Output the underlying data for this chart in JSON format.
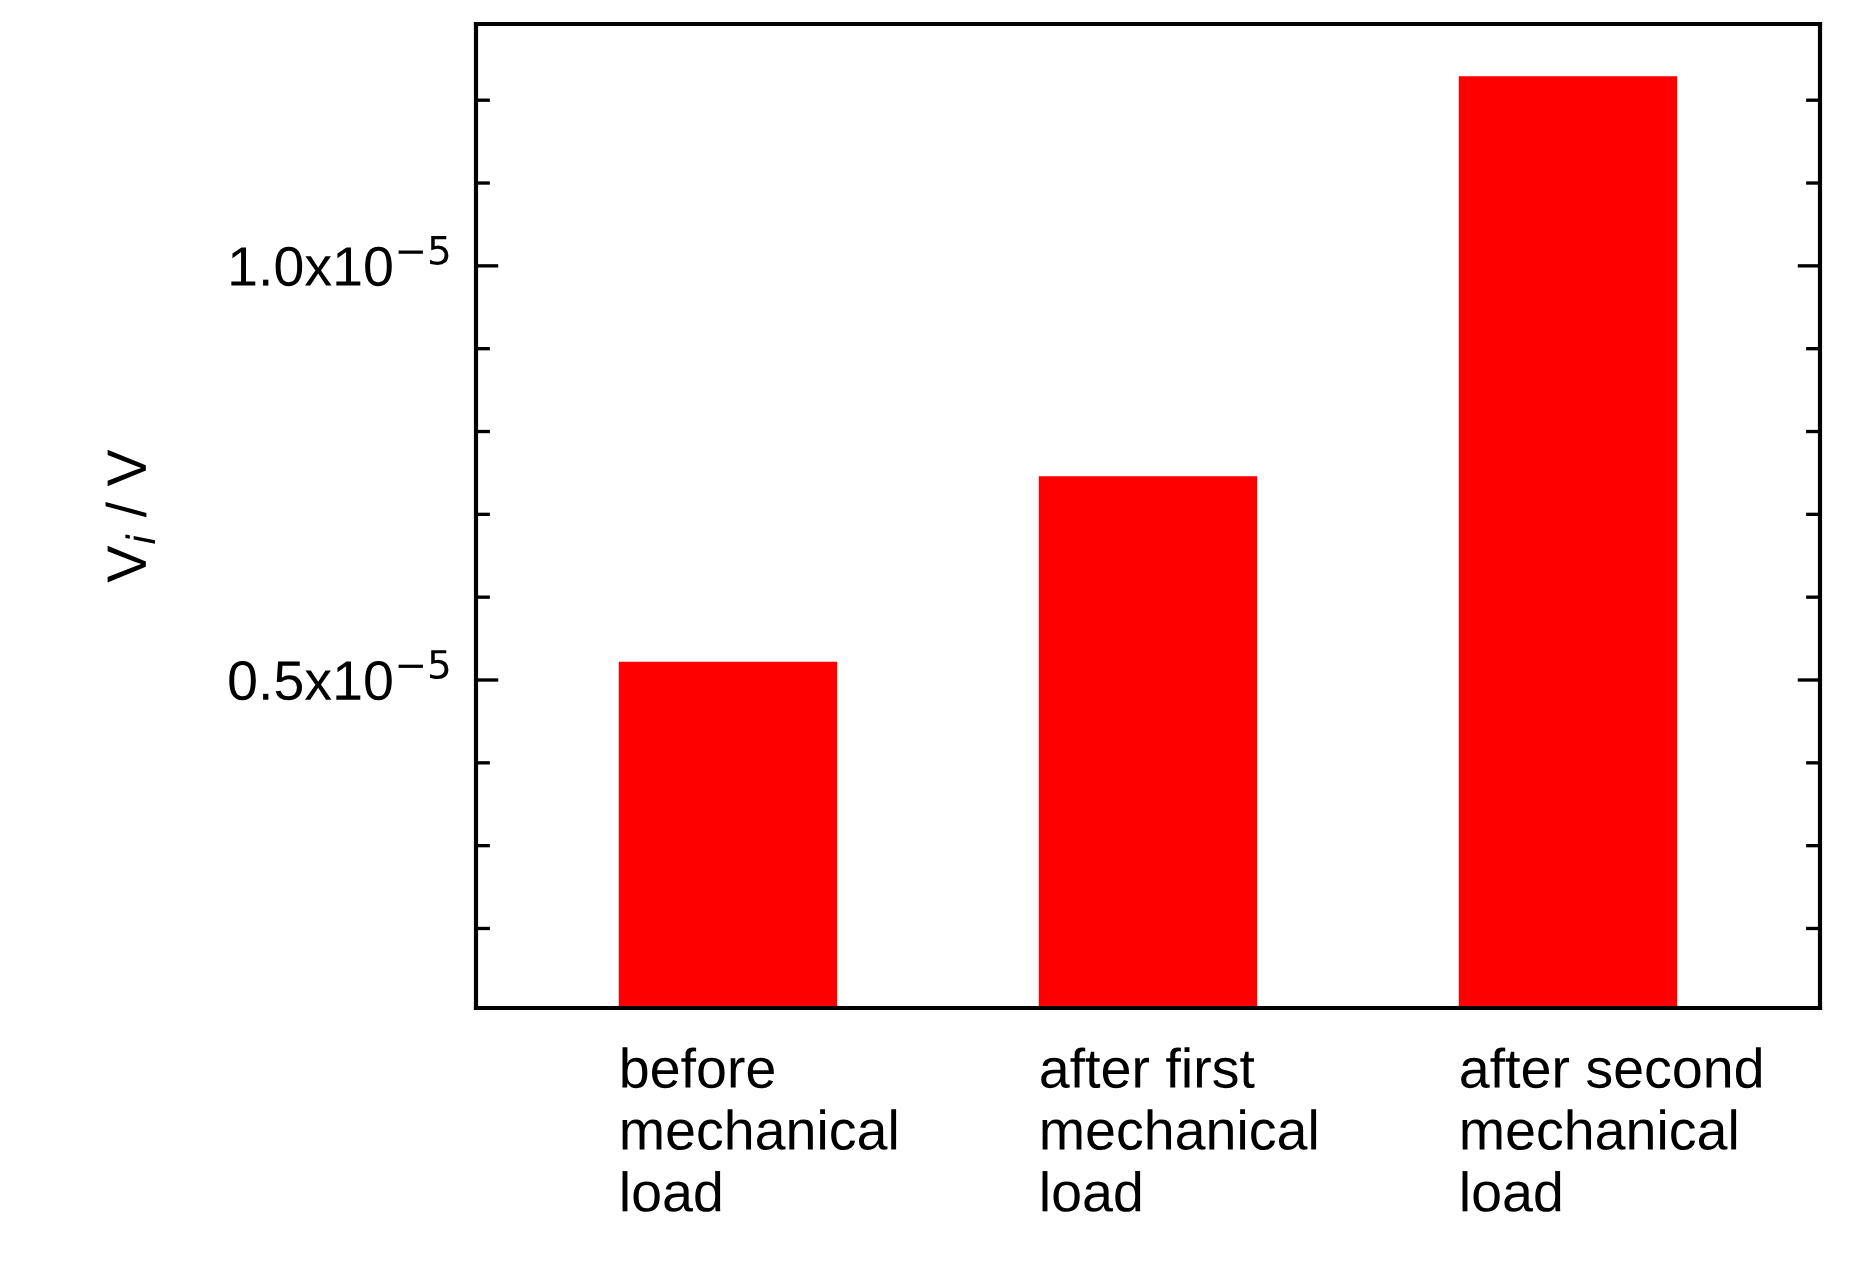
{
  "chart_data": {
    "type": "bar",
    "ylabel": "V$_{i}$ / V",
    "categories": [
      "before\nmechanical\nload",
      "after first\nmechanical\nload",
      "after second\nmechanical\nload"
    ],
    "values": [
      5.22e-06,
      7.46e-06,
      1.229e-05
    ],
    "color": "#ff0000",
    "ylim": [
      1.04e-06,
      1.292e-05
    ],
    "yticks": [
      {
        "value": 2e-06,
        "label": null
      },
      {
        "value": 3e-06,
        "label": null
      },
      {
        "value": 4e-06,
        "label": null
      },
      {
        "value": 5e-06,
        "label": "0.5x10$^{−5}$"
      },
      {
        "value": 6e-06,
        "label": null
      },
      {
        "value": 7e-06,
        "label": null
      },
      {
        "value": 8e-06,
        "label": null
      },
      {
        "value": 9e-06,
        "label": null
      },
      {
        "value": 1e-05,
        "label": "1.0x10$^{−5}$"
      },
      {
        "value": 1.1e-05,
        "label": null
      },
      {
        "value": 1.2e-05,
        "label": null
      }
    ],
    "grid": false
  }
}
